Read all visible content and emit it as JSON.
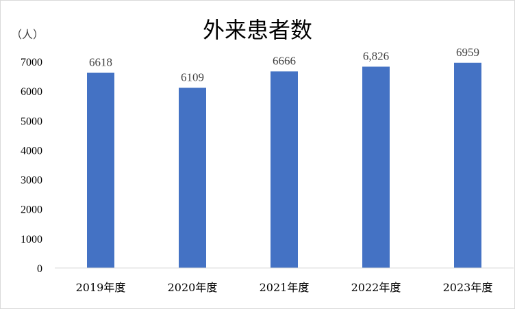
{
  "chart_data": {
    "type": "bar",
    "title": "外来患者数",
    "ylabel": "（人）",
    "xlabel": "",
    "categories": [
      "2019年度",
      "2020年度",
      "2021年度",
      "2022年度",
      "2023年度"
    ],
    "values": [
      6618,
      6109,
      6666,
      6826,
      6959
    ],
    "data_labels": [
      "6618",
      "6109",
      "6666",
      "6,826",
      "6959"
    ],
    "ylim": [
      0,
      7000
    ],
    "yticks": [
      0,
      1000,
      2000,
      3000,
      4000,
      5000,
      6000,
      7000
    ],
    "ytick_labels": [
      "0",
      "1000",
      "2000",
      "3000",
      "4000",
      "5000",
      "6000",
      "7000"
    ],
    "grid": false,
    "legend": "none",
    "bar_color": "#4472c4"
  }
}
